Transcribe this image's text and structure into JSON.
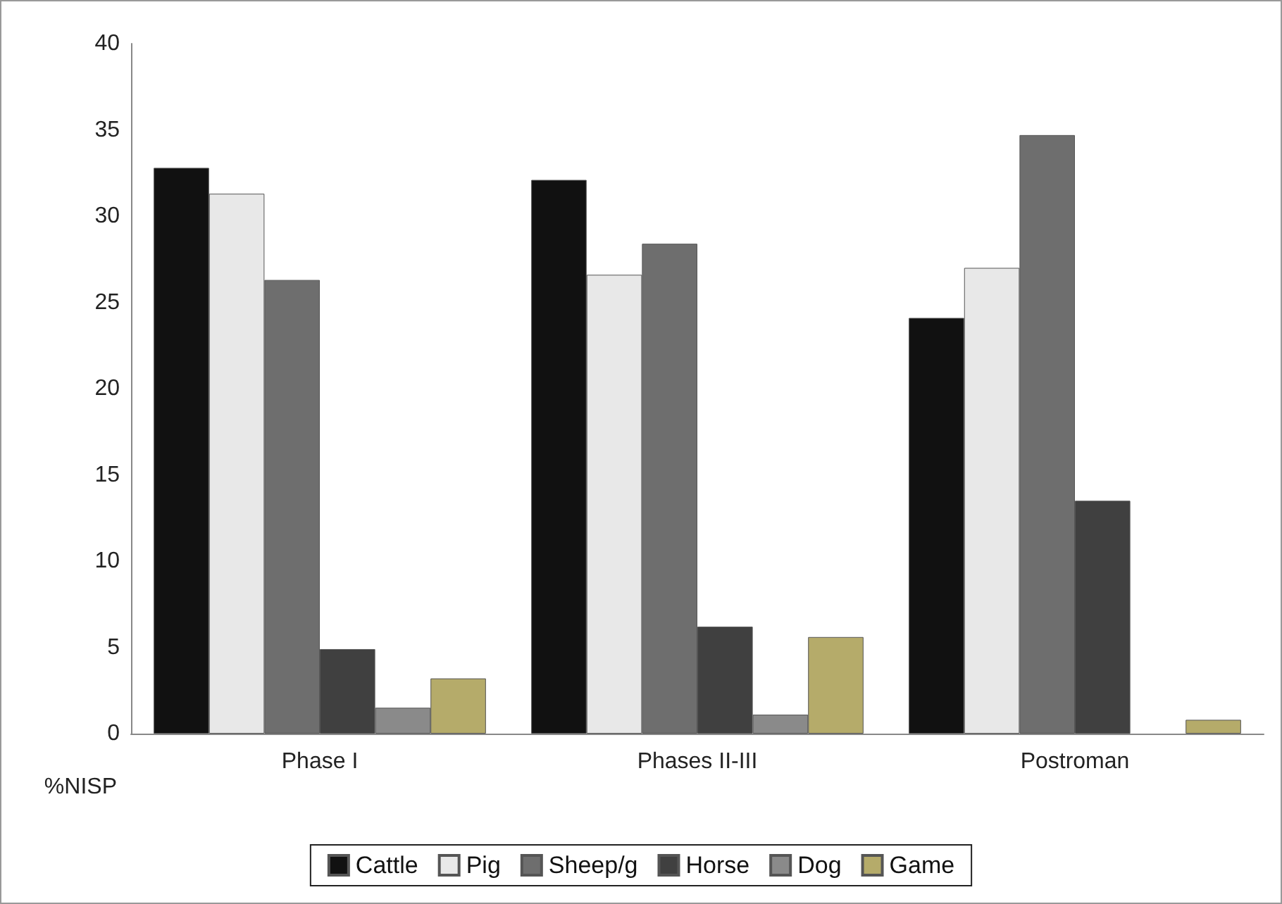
{
  "chart_data": {
    "type": "bar",
    "ylabel": "%NISP",
    "categories": [
      "Phase I",
      "Phases II-III",
      "Postroman"
    ],
    "series": [
      {
        "name": "Cattle",
        "color": "#111111",
        "values": [
          32.8,
          32.1,
          24.1
        ]
      },
      {
        "name": "Pig",
        "color": "#e8e8e8",
        "values": [
          31.3,
          26.6,
          27.0
        ]
      },
      {
        "name": "Sheep/g",
        "color": "#6e6e6e",
        "values": [
          26.3,
          28.4,
          34.7
        ]
      },
      {
        "name": "Horse",
        "color": "#404040",
        "values": [
          4.9,
          6.2,
          13.5
        ]
      },
      {
        "name": "Dog",
        "color": "#8a8a8a",
        "values": [
          1.5,
          1.1,
          null
        ]
      },
      {
        "name": "Game",
        "color": "#b5ab6a",
        "values": [
          3.2,
          5.6,
          0.8
        ]
      }
    ],
    "ylim": [
      0,
      40
    ],
    "yticks": [
      0,
      5,
      10,
      15,
      20,
      25,
      30,
      35,
      40
    ],
    "grid": false,
    "legend": "bottom"
  }
}
